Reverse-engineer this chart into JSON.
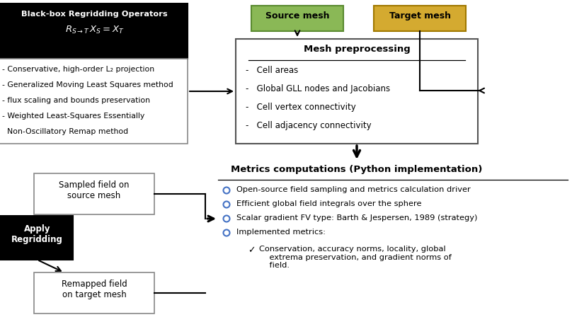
{
  "fig_width": 8.08,
  "fig_height": 4.55,
  "bg_color": "#ffffff",
  "black_box_title": "Black-box Regridding Operators",
  "black_box_formula": "$R_{S\\rightarrow T}\\, X_S = X_T$",
  "black_box_bullets": [
    "- Conservative, high-order L₂ projection",
    "- Generalized Moving Least Squares method",
    "- flux scaling and bounds preservation",
    "- Weighted Least-Squares Essentially",
    "  Non-Oscillatory Remap method"
  ],
  "source_mesh_label": "Source mesh",
  "target_mesh_label": "Target mesh",
  "source_mesh_facecolor": "#8ab856",
  "source_mesh_edgecolor": "#5a8a30",
  "target_mesh_facecolor": "#d4aa30",
  "target_mesh_edgecolor": "#a07800",
  "preproc_title": "Mesh preprocessing",
  "preproc_bullets": [
    "-   Cell areas",
    "-   Global GLL nodes and Jacobians",
    "-   Cell vertex connectivity",
    "-   Cell adjacency connectivity"
  ],
  "sampled_box_label": "Sampled field on\nsource mesh",
  "remapped_box_label": "Remapped field\non target mesh",
  "apply_label": "Apply\nRegridding",
  "metrics_title": "Metrics computations (Python implementation)",
  "metrics_bullets": [
    "Open-source field sampling and metrics calculation driver",
    "Efficient global field integrals over the sphere",
    "Scalar gradient FV type: Barth & Jespersen, 1989 (strategy)",
    "Implemented metrics:"
  ],
  "metrics_subbullet_check": "✓",
  "metrics_subbullet_text": "Conservation, accuracy norms, locality, global\n    extrema preservation, and gradient norms of\n    field.",
  "bullet_color": "#4472c4",
  "arrow_color": "#000000",
  "box_edge_color": "#888888"
}
